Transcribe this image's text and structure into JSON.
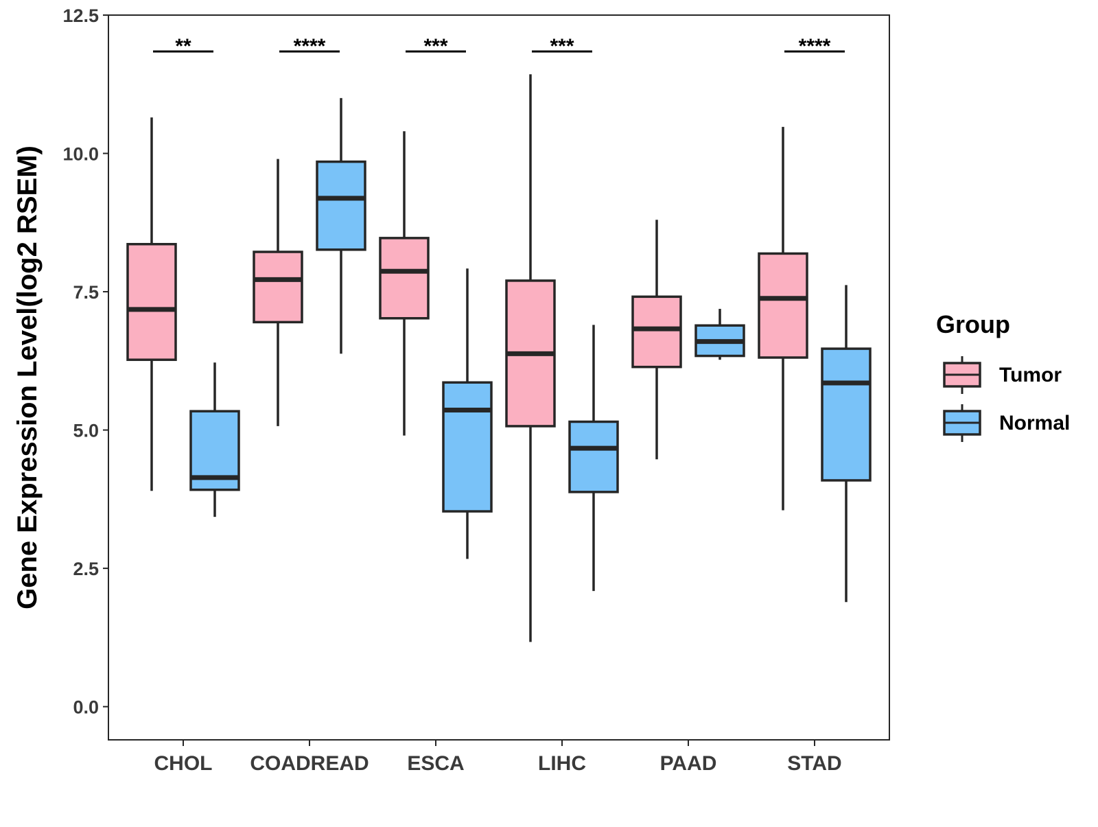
{
  "chart_data": {
    "type": "boxplot",
    "title": "",
    "xlabel": "",
    "ylabel": "Gene Expression Level(log2 RSEM)",
    "ylim": [
      -0.6,
      12.5
    ],
    "yticks": [
      0.0,
      2.5,
      5.0,
      7.5,
      10.0,
      12.5
    ],
    "ytick_labels": [
      "0.0",
      "2.5",
      "5.0",
      "7.5",
      "10.0",
      "12.5"
    ],
    "categories": [
      "CHOL",
      "COADREAD",
      "ESCA",
      "LIHC",
      "PAAD",
      "STAD"
    ],
    "significance": [
      "**",
      "****",
      "***",
      "***",
      "",
      "****"
    ],
    "legend": {
      "title": "Group",
      "position": "right",
      "entries": [
        "Tumor",
        "Normal"
      ]
    },
    "colors": {
      "Tumor": "#FBB0C1",
      "Normal": "#79C2F8",
      "outline": "#262626"
    },
    "series": [
      {
        "name": "Tumor",
        "boxes": [
          {
            "whisker_low": 3.9,
            "q1": 6.27,
            "median": 7.18,
            "q3": 8.36,
            "whisker_high": 10.65
          },
          {
            "whisker_low": 5.07,
            "q1": 6.95,
            "median": 7.72,
            "q3": 8.22,
            "whisker_high": 9.9
          },
          {
            "whisker_low": 4.9,
            "q1": 7.02,
            "median": 7.87,
            "q3": 8.47,
            "whisker_high": 10.4
          },
          {
            "whisker_low": 1.17,
            "q1": 5.07,
            "median": 6.38,
            "q3": 7.7,
            "whisker_high": 11.43
          },
          {
            "whisker_low": 4.47,
            "q1": 6.14,
            "median": 6.83,
            "q3": 7.41,
            "whisker_high": 8.8
          },
          {
            "whisker_low": 3.55,
            "q1": 6.31,
            "median": 7.38,
            "q3": 8.19,
            "whisker_high": 10.48
          }
        ]
      },
      {
        "name": "Normal",
        "boxes": [
          {
            "whisker_low": 3.43,
            "q1": 3.92,
            "median": 4.14,
            "q3": 5.34,
            "whisker_high": 6.22
          },
          {
            "whisker_low": 6.38,
            "q1": 8.26,
            "median": 9.19,
            "q3": 9.85,
            "whisker_high": 11.0
          },
          {
            "whisker_low": 2.67,
            "q1": 3.53,
            "median": 5.36,
            "q3": 5.86,
            "whisker_high": 7.92
          },
          {
            "whisker_low": 2.09,
            "q1": 3.88,
            "median": 4.67,
            "q3": 5.15,
            "whisker_high": 6.9
          },
          {
            "whisker_low": 6.27,
            "q1": 6.34,
            "median": 6.6,
            "q3": 6.89,
            "whisker_high": 7.19
          },
          {
            "whisker_low": 1.89,
            "q1": 4.09,
            "median": 5.85,
            "q3": 6.47,
            "whisker_high": 7.62
          }
        ]
      }
    ]
  }
}
